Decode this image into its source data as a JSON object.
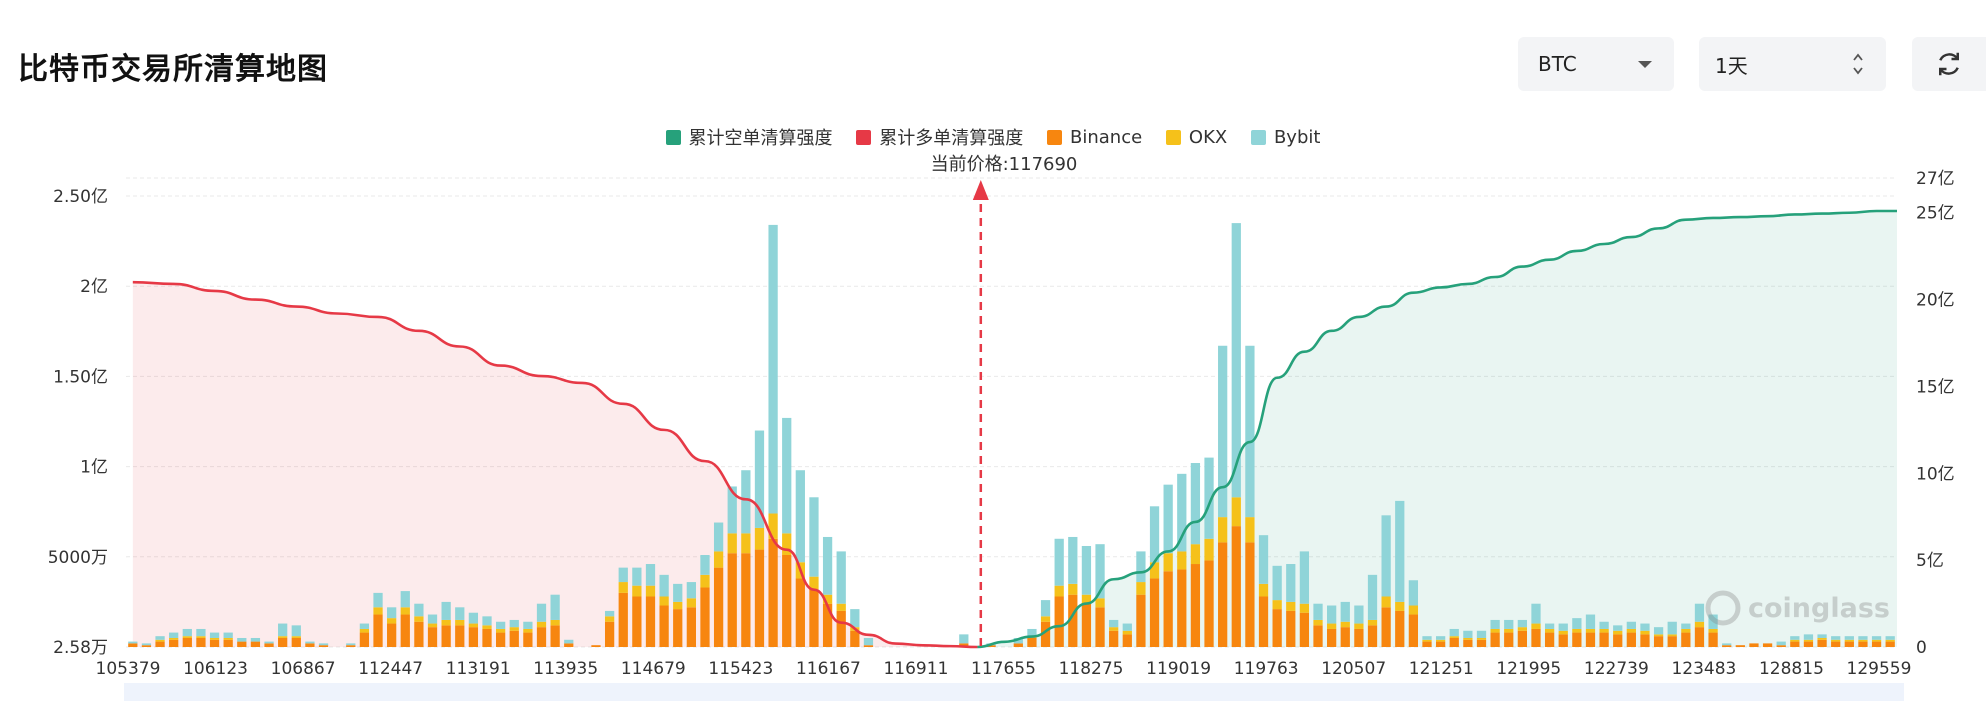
{
  "page": {
    "title": "比特币交易所清算地图"
  },
  "controls": {
    "coin": "BTC",
    "period": "1天",
    "refresh_icon": "refresh-icon"
  },
  "colors": {
    "short_line": "#26a17b",
    "long_line": "#e63946",
    "binance": "#f7860f",
    "okx": "#f5c11a",
    "bybit": "#8fd4d8"
  },
  "watermark": "coinglass",
  "chart_data": {
    "type": "bar",
    "title": "",
    "current_price_label": "当前价格:117690",
    "current_price": 117690,
    "legend": [
      "累计空单清算强度",
      "累计多单清算强度",
      "Binance",
      "OKX",
      "Bybit"
    ],
    "x_tick_labels": [
      "105379",
      "106123",
      "106867",
      "112447",
      "113191",
      "113935",
      "114679",
      "115423",
      "116167",
      "116911",
      "117655",
      "118275",
      "119019",
      "119763",
      "120507",
      "121251",
      "121995",
      "122739",
      "123483",
      "128815",
      "129559"
    ],
    "left_axis": {
      "unit": "亿",
      "ylim": [
        0,
        2.6
      ],
      "ticks": [
        {
          "v": 0,
          "t": "2.58万"
        },
        {
          "v": 0.5,
          "t": "5000万"
        },
        {
          "v": 1,
          "t": "1亿"
        },
        {
          "v": 1.5,
          "t": "1.50亿"
        },
        {
          "v": 2,
          "t": "2亿"
        },
        {
          "v": 2.5,
          "t": "2.50亿"
        }
      ]
    },
    "right_axis": {
      "unit": "亿",
      "ylim": [
        0,
        27
      ],
      "ticks": [
        {
          "v": 0,
          "t": "0"
        },
        {
          "v": 5,
          "t": "5亿"
        },
        {
          "v": 10,
          "t": "10亿"
        },
        {
          "v": 15,
          "t": "15亿"
        },
        {
          "v": 20,
          "t": "20亿"
        },
        {
          "v": 25,
          "t": "25亿"
        },
        {
          "v": 27,
          "t": "27亿"
        }
      ]
    },
    "series": [
      {
        "name": "Binance",
        "values": [
          0.02,
          0.01,
          0.03,
          0.04,
          0.05,
          0.05,
          0.04,
          0.04,
          0.03,
          0.03,
          0.02,
          0.05,
          0.05,
          0.02,
          0.01,
          0,
          0.01,
          0.08,
          0.18,
          0.13,
          0.18,
          0.14,
          0.11,
          0.12,
          0.12,
          0.11,
          0.1,
          0.08,
          0.09,
          0.08,
          0.11,
          0.12,
          0.02,
          0,
          0.01,
          0.14,
          0.3,
          0.28,
          0.28,
          0.23,
          0.21,
          0.22,
          0.33,
          0.44,
          0.52,
          0.52,
          0.54,
          0.6,
          0.51,
          0.38,
          0.32,
          0.24,
          0.2,
          0.09,
          0.01,
          0,
          0,
          0,
          0,
          0,
          0,
          0.02,
          0,
          0.01,
          0,
          0.02,
          0.05,
          0.14,
          0.28,
          0.29,
          0.24,
          0.22,
          0.09,
          0.07,
          0.29,
          0.38,
          0.42,
          0.43,
          0.46,
          0.48,
          0.58,
          0.67,
          0.58,
          0.28,
          0.21,
          0.2,
          0.19,
          0.12,
          0.1,
          0.11,
          0.1,
          0.12,
          0.22,
          0.2,
          0.18,
          0.03,
          0.03,
          0.05,
          0.04,
          0.04,
          0.08,
          0.08,
          0.09,
          0.1,
          0.08,
          0.07,
          0.08,
          0.08,
          0.08,
          0.07,
          0.08,
          0.07,
          0.06,
          0.06,
          0.08,
          0.11,
          0.08,
          0.01,
          0.01,
          0.02,
          0.02,
          0.01,
          0.03,
          0.03,
          0.04,
          0.03,
          0.03,
          0.03,
          0.03,
          0.03
        ]
      },
      {
        "name": "OKX",
        "values": [
          0,
          0,
          0.01,
          0.01,
          0.01,
          0.01,
          0.01,
          0.01,
          0,
          0,
          0,
          0.01,
          0.01,
          0,
          0,
          0,
          0,
          0.02,
          0.04,
          0.03,
          0.04,
          0.03,
          0.02,
          0.03,
          0.03,
          0.02,
          0.02,
          0.02,
          0.02,
          0.02,
          0.03,
          0.03,
          0,
          0,
          0,
          0.03,
          0.06,
          0.06,
          0.06,
          0.05,
          0.04,
          0.05,
          0.07,
          0.09,
          0.11,
          0.11,
          0.12,
          0.14,
          0.12,
          0.09,
          0.07,
          0.05,
          0.04,
          0.02,
          0,
          0,
          0,
          0,
          0,
          0,
          0,
          0,
          0,
          0,
          0,
          0,
          0.01,
          0.03,
          0.06,
          0.06,
          0.05,
          0.05,
          0.02,
          0.02,
          0.07,
          0.09,
          0.1,
          0.1,
          0.11,
          0.12,
          0.14,
          0.16,
          0.14,
          0.07,
          0.05,
          0.05,
          0.05,
          0.03,
          0.03,
          0.03,
          0.03,
          0.03,
          0.06,
          0.05,
          0.05,
          0.01,
          0.01,
          0.01,
          0.01,
          0.01,
          0.02,
          0.02,
          0.02,
          0.03,
          0.02,
          0.02,
          0.02,
          0.02,
          0.02,
          0.02,
          0.02,
          0.02,
          0.01,
          0.01,
          0.02,
          0.03,
          0.02,
          0,
          0,
          0,
          0,
          0,
          0.01,
          0.01,
          0.01,
          0.01,
          0.01,
          0.01,
          0.01,
          0.01
        ]
      },
      {
        "name": "Bybit",
        "values": [
          0.01,
          0.01,
          0.02,
          0.03,
          0.04,
          0.04,
          0.03,
          0.03,
          0.02,
          0.02,
          0.01,
          0.07,
          0.06,
          0.01,
          0.01,
          0,
          0.01,
          0.03,
          0.08,
          0.06,
          0.09,
          0.07,
          0.05,
          0.1,
          0.07,
          0.06,
          0.05,
          0.04,
          0.04,
          0.04,
          0.1,
          0.14,
          0.02,
          0,
          0,
          0.03,
          0.08,
          0.1,
          0.12,
          0.12,
          0.1,
          0.09,
          0.11,
          0.16,
          0.26,
          0.35,
          0.54,
          1.6,
          0.64,
          0.51,
          0.44,
          0.32,
          0.29,
          0.1,
          0.04,
          0,
          0,
          0,
          0,
          0,
          0,
          0.05,
          0,
          0.01,
          0,
          0.03,
          0.04,
          0.09,
          0.26,
          0.26,
          0.27,
          0.3,
          0.04,
          0.04,
          0.17,
          0.31,
          0.38,
          0.43,
          0.45,
          0.45,
          0.95,
          1.52,
          0.95,
          0.27,
          0.19,
          0.21,
          0.29,
          0.09,
          0.1,
          0.11,
          0.1,
          0.25,
          0.45,
          0.56,
          0.14,
          0.02,
          0.02,
          0.04,
          0.04,
          0.04,
          0.05,
          0.05,
          0.04,
          0.11,
          0.03,
          0.04,
          0.06,
          0.08,
          0.04,
          0.03,
          0.04,
          0.04,
          0.04,
          0.07,
          0.03,
          0.1,
          0.08,
          0.01,
          0,
          0,
          0,
          0.02,
          0.02,
          0.03,
          0.02,
          0.02,
          0.02,
          0.02,
          0.02,
          0.02
        ]
      },
      {
        "name": "累计多单清算强度",
        "axis": "right",
        "x_index": [
          0,
          3,
          6,
          9,
          12,
          15,
          18,
          21,
          24,
          27,
          30,
          33,
          36,
          39,
          42,
          45,
          48,
          50,
          52,
          54,
          56,
          58,
          60,
          62
        ],
        "values": [
          21,
          20.9,
          20.5,
          20,
          19.6,
          19.2,
          19,
          18.2,
          17.3,
          16.2,
          15.6,
          15.2,
          14,
          12.5,
          10.7,
          8.5,
          5.6,
          3.3,
          1.4,
          0.7,
          0.2,
          0.1,
          0.05,
          0
        ]
      },
      {
        "name": "累计空单清算强度",
        "axis": "right",
        "x_index": [
          62,
          64,
          66,
          68,
          70,
          72,
          74,
          76,
          78,
          80,
          82,
          84,
          86,
          88,
          90,
          92,
          94,
          96,
          98,
          100,
          102,
          104,
          106,
          108,
          110,
          112,
          114,
          116,
          118,
          120,
          122,
          124,
          126,
          128,
          129
        ],
        "values": [
          0,
          0.3,
          0.6,
          1.2,
          2.5,
          3.9,
          4.3,
          5.5,
          7.2,
          9.2,
          11.8,
          15.5,
          17,
          18.2,
          19,
          19.6,
          20.4,
          20.7,
          20.9,
          21.3,
          21.9,
          22.3,
          22.8,
          23.2,
          23.6,
          24.1,
          24.6,
          24.7,
          24.75,
          24.8,
          24.9,
          24.95,
          25,
          25.1,
          25.1
        ]
      }
    ]
  }
}
